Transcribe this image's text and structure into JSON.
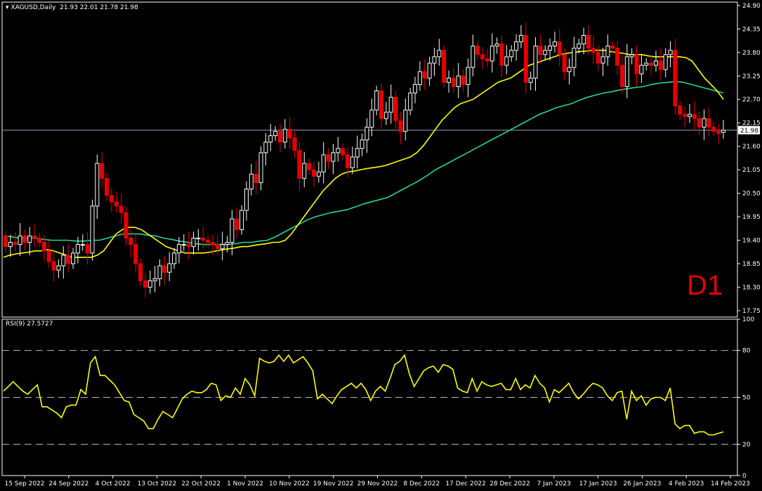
{
  "header": {
    "symbol": "XAGUSD,Daily",
    "ohlc": "21.93 22.01 21.78 21.98",
    "rsi_label": "RSI(9) 27.5727"
  },
  "timeframe_label": "D1",
  "colors": {
    "background": "#000000",
    "bull_candle": "#ffffff",
    "bear_candle": "#e60000",
    "ma_fast": "#ffff00",
    "ma_slow": "#26d89a",
    "rsi": "#ffff00",
    "frame": "#ffffff",
    "price_line": "#8a96b8"
  },
  "chart_data": [
    {
      "type": "candlestick",
      "title": "XAGUSD,Daily",
      "last_price": "21.98",
      "ylim": [
        17.6,
        24.98
      ],
      "y_ticks": [
        "24.90",
        "24.35",
        "23.80",
        "23.25",
        "22.70",
        "22.15",
        "21.60",
        "21.05",
        "20.50",
        "19.95",
        "19.40",
        "18.85",
        "18.30",
        "17.75"
      ],
      "x_ticks": [
        "15 Sep 2022",
        "24 Sep 2022",
        "4 Oct 2022",
        "13 Oct 2022",
        "22 Oct 2022",
        "1 Nov 2022",
        "10 Nov 2022",
        "19 Nov 2022",
        "29 Nov 2022",
        "8 Dec 2022",
        "17 Dec 2022",
        "28 Dec 2022",
        "7 Jan 2023",
        "17 Jan 2023",
        "26 Jan 2023",
        "4 Feb 2023",
        "14 Feb 2023"
      ],
      "series": [
        {
          "kind": "candles",
          "close": [
            19.25,
            19.35,
            19.3,
            19.5,
            19.35,
            19.5,
            19.45,
            19.35,
            19.15,
            18.9,
            18.7,
            18.8,
            19.05,
            18.85,
            19.1,
            19.3,
            19.3,
            19.1,
            20.2,
            21.2,
            20.85,
            20.45,
            20.3,
            20.2,
            20.05,
            19.45,
            19.3,
            18.85,
            18.45,
            18.3,
            18.45,
            18.5,
            18.8,
            18.65,
            18.85,
            19.1,
            19.3,
            19.3,
            19.25,
            19.45,
            19.45,
            19.4,
            19.35,
            19.3,
            19.2,
            19.3,
            19.35,
            19.9,
            19.65,
            20.1,
            20.6,
            20.95,
            20.75,
            21.45,
            21.7,
            21.85,
            21.95,
            21.7,
            22.0,
            21.8,
            21.5,
            20.85,
            21.2,
            21.05,
            20.9,
            21.0,
            21.4,
            21.25,
            21.45,
            21.55,
            21.4,
            21.1,
            21.35,
            21.55,
            21.75,
            22.05,
            22.45,
            22.9,
            22.25,
            22.4,
            22.75,
            22.2,
            21.95,
            22.45,
            22.85,
            23.05,
            23.35,
            23.2,
            23.55,
            23.7,
            23.85,
            23.1,
            23.2,
            23.0,
            23.25,
            23.05,
            23.45,
            23.95,
            23.75,
            23.65,
            23.6,
            23.95,
            24.0,
            23.5,
            23.7,
            23.85,
            24.05,
            24.2,
            23.1,
            23.2,
            23.95,
            23.75,
            23.85,
            23.95,
            24.05,
            23.75,
            23.35,
            23.45,
            23.9,
            24.0,
            24.2,
            23.9,
            23.8,
            23.55,
            23.7,
            23.95,
            23.9,
            23.5,
            23.0,
            23.7,
            23.75,
            23.3,
            23.5,
            23.55,
            23.5,
            23.6,
            23.4,
            23.75,
            23.85,
            22.55,
            22.35,
            22.3,
            22.35,
            22.25,
            22.05,
            22.25,
            22.05,
            21.95,
            21.9,
            21.98
          ],
          "open": [
            19.5,
            19.25,
            19.35,
            19.3,
            19.5,
            19.35,
            19.5,
            19.45,
            19.35,
            19.15,
            18.9,
            18.7,
            18.8,
            19.05,
            18.85,
            19.1,
            19.3,
            19.3,
            19.1,
            20.2,
            21.2,
            20.85,
            20.45,
            20.3,
            20.2,
            20.05,
            19.45,
            19.3,
            18.85,
            18.45,
            18.3,
            18.45,
            18.5,
            18.8,
            18.65,
            18.85,
            19.1,
            19.3,
            19.3,
            19.25,
            19.45,
            19.45,
            19.4,
            19.35,
            19.3,
            19.2,
            19.3,
            19.35,
            19.9,
            19.65,
            20.1,
            20.6,
            20.95,
            20.75,
            21.45,
            21.7,
            21.85,
            21.95,
            21.7,
            22.0,
            21.8,
            21.5,
            20.85,
            21.2,
            21.05,
            20.9,
            21.0,
            21.4,
            21.25,
            21.45,
            21.55,
            21.4,
            21.1,
            21.35,
            21.55,
            21.75,
            22.05,
            22.45,
            22.9,
            22.25,
            22.4,
            22.75,
            22.2,
            21.95,
            22.45,
            22.85,
            23.05,
            23.35,
            23.2,
            23.55,
            23.7,
            23.85,
            23.1,
            23.2,
            23.0,
            23.25,
            23.05,
            23.45,
            23.95,
            23.75,
            23.65,
            23.6,
            23.95,
            24.0,
            23.5,
            23.7,
            23.85,
            24.05,
            24.2,
            23.1,
            23.2,
            23.95,
            23.75,
            23.85,
            23.95,
            24.05,
            23.75,
            23.35,
            23.45,
            23.9,
            24.0,
            24.2,
            23.9,
            23.8,
            23.55,
            23.7,
            23.95,
            23.9,
            23.5,
            23.0,
            23.7,
            23.75,
            23.3,
            23.5,
            23.55,
            23.5,
            23.6,
            23.4,
            23.75,
            23.85,
            22.55,
            22.35,
            22.3,
            22.35,
            22.25,
            22.05,
            22.25,
            22.05,
            21.95,
            21.93
          ]
        },
        {
          "kind": "moving-average-fast",
          "values": [
            19.0,
            19.05,
            19.08,
            19.1,
            19.12,
            19.15,
            19.15,
            19.18,
            19.15,
            19.1,
            19.05,
            19.0,
            19.0,
            19.0,
            19.0,
            19.05,
            19.15,
            19.35,
            19.55,
            19.65,
            19.7,
            19.7,
            19.65,
            19.55,
            19.45,
            19.35,
            19.25,
            19.2,
            19.15,
            19.1,
            19.1,
            19.1,
            19.1,
            19.12,
            19.15,
            19.18,
            19.2,
            19.22,
            19.25,
            19.25,
            19.28,
            19.3,
            19.32,
            19.35,
            19.35,
            19.4,
            19.55,
            19.75,
            19.95,
            20.15,
            20.35,
            20.55,
            20.7,
            20.85,
            20.95,
            21.0,
            21.02,
            21.05,
            21.08,
            21.1,
            21.12,
            21.15,
            21.2,
            21.25,
            21.3,
            21.35,
            21.45,
            21.6,
            21.8,
            22.0,
            22.2,
            22.35,
            22.5,
            22.6,
            22.65,
            22.7,
            22.8,
            22.9,
            23.0,
            23.1,
            23.15,
            23.2,
            23.3,
            23.4,
            23.5,
            23.55,
            23.6,
            23.65,
            23.7,
            23.75,
            23.78,
            23.8,
            23.82,
            23.83,
            23.85,
            23.85,
            23.85,
            23.82,
            23.8,
            23.78,
            23.75,
            23.75,
            23.75,
            23.72,
            23.7,
            23.7,
            23.7,
            23.7,
            23.7,
            23.68,
            23.6,
            23.4,
            23.2,
            23.05,
            22.9,
            22.7
          ]
        },
        {
          "kind": "moving-average-slow",
          "values": [
            19.5,
            19.48,
            19.45,
            19.45,
            19.45,
            19.42,
            19.4,
            19.4,
            19.4,
            19.38,
            19.38,
            19.4,
            19.4,
            19.45,
            19.5,
            19.55,
            19.55,
            19.55,
            19.52,
            19.5,
            19.45,
            19.42,
            19.38,
            19.35,
            19.32,
            19.3,
            19.3,
            19.3,
            19.3,
            19.32,
            19.35,
            19.35,
            19.38,
            19.4,
            19.48,
            19.58,
            19.68,
            19.78,
            19.88,
            19.95,
            20.0,
            20.05,
            20.08,
            20.12,
            20.18,
            20.25,
            20.3,
            20.35,
            20.4,
            20.5,
            20.6,
            20.7,
            20.8,
            20.92,
            21.05,
            21.15,
            21.25,
            21.35,
            21.45,
            21.55,
            21.65,
            21.75,
            21.85,
            21.95,
            22.05,
            22.15,
            22.25,
            22.35,
            22.42,
            22.5,
            22.55,
            22.6,
            22.68,
            22.75,
            22.8,
            22.85,
            22.88,
            22.92,
            22.95,
            22.98,
            23.0,
            23.05,
            23.08,
            23.1,
            23.12,
            23.1,
            23.05,
            23.0,
            22.95,
            22.9,
            22.85
          ]
        }
      ]
    },
    {
      "type": "line",
      "title": "RSI(9) 27.5727",
      "ylim": [
        0,
        100
      ],
      "y_ticks": [
        "100",
        "80",
        "50",
        "20",
        "0"
      ],
      "levels": [
        80,
        50,
        20
      ],
      "series": [
        {
          "values": [
            54,
            57,
            60,
            57,
            54,
            52,
            55,
            58,
            44,
            44,
            42,
            40,
            37,
            44,
            45,
            45,
            55,
            52,
            72,
            76,
            64,
            64,
            61,
            58,
            53,
            48,
            47,
            39,
            37,
            35,
            30,
            30,
            36,
            41,
            39,
            37,
            43,
            49,
            52,
            54,
            53,
            53,
            55,
            59,
            58,
            48,
            51,
            50,
            56,
            52,
            62,
            58,
            51,
            75,
            73,
            72,
            73,
            77,
            73,
            77,
            72,
            74,
            76,
            72,
            67,
            49,
            52,
            49,
            46,
            51,
            55,
            57,
            59,
            56,
            59,
            55,
            48,
            54,
            57,
            54,
            62,
            71,
            73,
            77,
            65,
            57,
            62,
            67,
            69,
            70,
            66,
            71,
            70,
            68,
            56,
            54,
            53,
            62,
            54,
            60,
            58,
            57,
            58,
            59,
            55,
            55,
            62,
            55,
            58,
            56,
            64,
            59,
            56,
            47,
            55,
            53,
            56,
            59,
            53,
            49,
            52,
            56,
            59,
            58,
            56,
            51,
            48,
            53,
            54,
            36,
            54,
            48,
            51,
            45,
            49,
            50,
            50,
            48,
            56,
            33,
            30,
            32,
            32,
            27,
            28,
            28,
            26,
            26,
            27,
            28
          ]
        }
      ]
    }
  ]
}
